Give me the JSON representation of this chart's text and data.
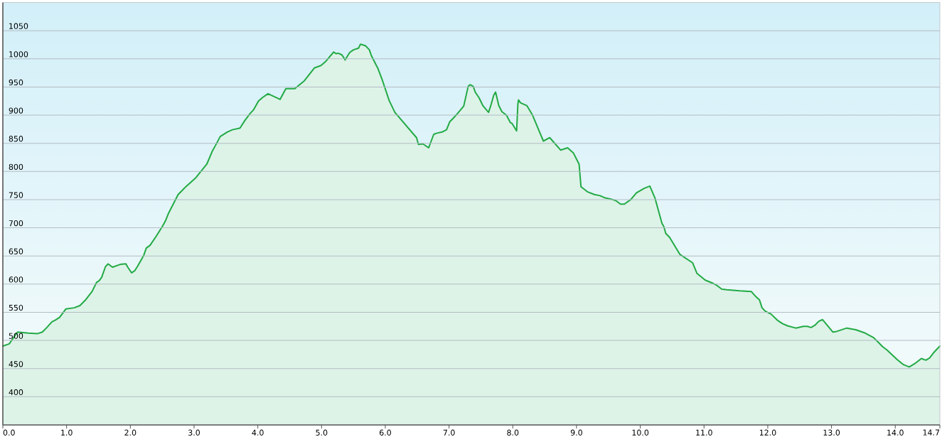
{
  "chart_data": {
    "type": "area",
    "color": "#22aa44",
    "x": [
      0,
      0.1,
      0.23,
      0.4,
      0.54,
      0.62,
      0.69,
      0.77,
      0.82,
      0.89,
      0.99,
      1.12,
      1.21,
      1.29,
      1.4,
      1.47,
      1.51,
      1.55,
      1.61,
      1.65,
      1.72,
      1.84,
      1.93,
      1.96,
      2.02,
      2.07,
      2.11,
      2.21,
      2.25,
      2.31,
      2.4,
      2.5,
      2.55,
      2.6,
      2.75,
      2.88,
      3.02,
      3.2,
      3.29,
      3.33,
      3.41,
      3.52,
      3.6,
      3.72,
      3.8,
      3.88,
      3.93,
      4.01,
      4.07,
      4.16,
      4.35,
      4.44,
      4.58,
      4.73,
      4.89,
      4.99,
      5.02,
      5.07,
      5.19,
      5.23,
      5.26,
      5.32,
      5.37,
      5.44,
      5.5,
      5.58,
      5.61,
      5.64,
      5.69,
      5.75,
      5.78,
      5.86,
      5.88,
      5.96,
      6.06,
      6.15,
      6.49,
      6.52,
      6.59,
      6.68,
      6.76,
      6.81,
      6.89,
      6.96,
      7.01,
      7.07,
      7.11,
      7.23,
      7.3,
      7.33,
      7.38,
      7.41,
      7.47,
      7.53,
      7.62,
      7.66,
      7.7,
      7.73,
      7.78,
      7.83,
      7.9,
      7.96,
      7.99,
      8.06,
      8.08,
      8.09,
      8.12,
      8.22,
      8.31,
      8.48,
      8.58,
      8.75,
      8.86,
      8.95,
      9.04,
      9.07,
      9.17,
      9.28,
      9.37,
      9.45,
      9.54,
      9.62,
      9.69,
      9.75,
      9.85,
      9.94,
      10.06,
      10.15,
      10.23,
      10.34,
      10.37,
      10.4,
      10.46,
      10.62,
      10.82,
      10.89,
      11.02,
      11.13,
      11.21,
      11.28,
      11.36,
      11.56,
      11.74,
      11.82,
      11.87,
      11.91,
      11.96,
      12.05,
      12.15,
      12.23,
      12.31,
      12.44,
      12.56,
      12.62,
      12.68,
      12.74,
      12.8,
      12.86,
      13.02,
      13.08,
      13.24,
      13.38,
      13.53,
      13.66,
      13.74,
      13.8,
      13.87,
      14.03,
      14.13,
      14.22,
      14.32,
      14.41,
      14.48,
      14.54,
      14.6,
      14.7
    ],
    "values": [
      490,
      494,
      515,
      513,
      512,
      515,
      523,
      533,
      536,
      541,
      556,
      558,
      562,
      571,
      587,
      603,
      606,
      612,
      631,
      636,
      630,
      635,
      636,
      630,
      620,
      624,
      631,
      651,
      664,
      669,
      684,
      702,
      712,
      726,
      759,
      774,
      788,
      813,
      837,
      845,
      862,
      870,
      874,
      877,
      891,
      903,
      909,
      925,
      931,
      938,
      928,
      947,
      947,
      961,
      984,
      988,
      991,
      996,
      1012,
      1009,
      1010,
      1007,
      998,
      1011,
      1016,
      1019,
      1026,
      1025,
      1023,
      1016,
      1006,
      988,
      984,
      960,
      926,
      905,
      860,
      848,
      849,
      842,
      866,
      868,
      870,
      874,
      888,
      895,
      900,
      916,
      951,
      954,
      951,
      941,
      931,
      917,
      905,
      919,
      935,
      941,
      917,
      906,
      900,
      887,
      885,
      872,
      920,
      927,
      922,
      917,
      900,
      854,
      860,
      838,
      842,
      833,
      813,
      773,
      764,
      759,
      757,
      753,
      751,
      748,
      742,
      742,
      750,
      762,
      770,
      774,
      753,
      708,
      702,
      690,
      683,
      653,
      638,
      619,
      607,
      602,
      597,
      591,
      590,
      588,
      587,
      577,
      572,
      558,
      552,
      547,
      536,
      530,
      526,
      522,
      525,
      525,
      523,
      527,
      534,
      537,
      515,
      516,
      522,
      519,
      513,
      505,
      496,
      489,
      483,
      466,
      457,
      453,
      460,
      468,
      465,
      469,
      478,
      490
    ],
    "xlim": [
      0,
      14.7
    ],
    "ylim": [
      350,
      1100
    ],
    "xticks": [
      {
        "value": 0,
        "label": "0.0"
      },
      {
        "value": 1,
        "label": "1.0"
      },
      {
        "value": 2,
        "label": "2.0"
      },
      {
        "value": 3,
        "label": "3.0"
      },
      {
        "value": 4,
        "label": "4.0"
      },
      {
        "value": 5,
        "label": "5.0"
      },
      {
        "value": 6,
        "label": "6.0"
      },
      {
        "value": 7,
        "label": "7.0"
      },
      {
        "value": 8,
        "label": "8.0"
      },
      {
        "value": 9,
        "label": "9.0"
      },
      {
        "value": 10,
        "label": "10.0"
      },
      {
        "value": 11,
        "label": "11.0"
      },
      {
        "value": 12,
        "label": "12.0"
      },
      {
        "value": 13,
        "label": "13.0"
      },
      {
        "value": 14,
        "label": "14.0"
      },
      14.7
    ],
    "yticks": [
      400,
      450,
      500,
      550,
      600,
      650,
      700,
      750,
      800,
      850,
      900,
      950,
      1000,
      1050
    ],
    "grid": "y"
  }
}
